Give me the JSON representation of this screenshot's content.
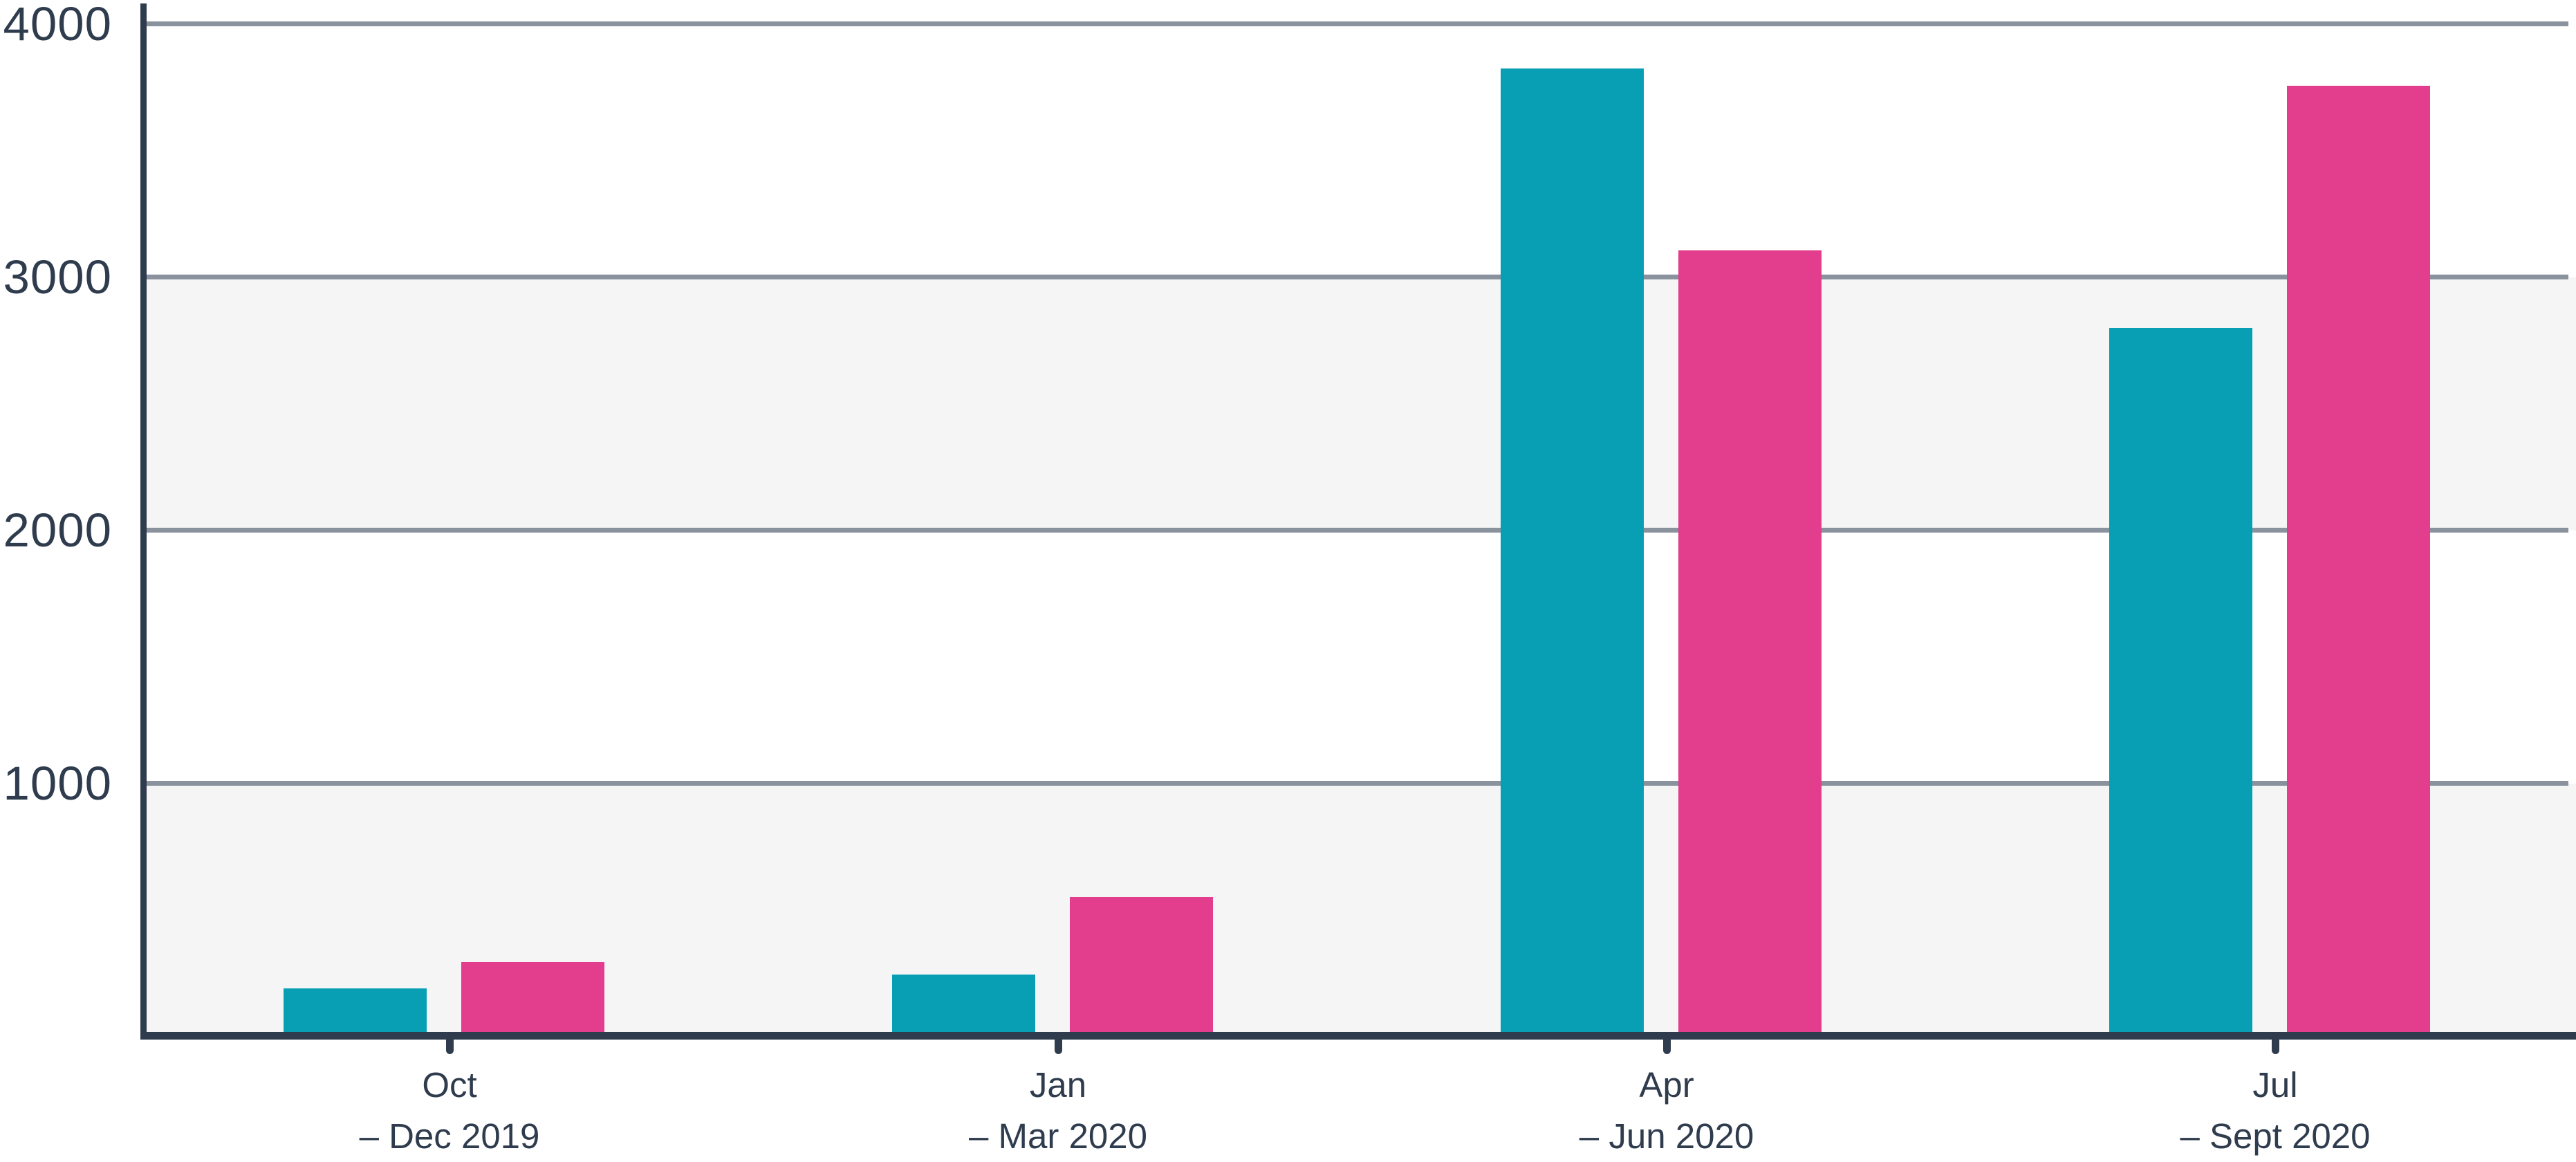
{
  "chart_data": {
    "type": "bar",
    "categories": [
      {
        "line1": "Oct",
        "line2": "– Dec 2019"
      },
      {
        "line1": "Jan",
        "line2": "– Mar 2020"
      },
      {
        "line1": "Apr",
        "line2": "– Jun 2020"
      },
      {
        "line1": "Jul",
        "line2": "– Sept 2020"
      }
    ],
    "series": [
      {
        "name": "teal",
        "color": "#089FB5",
        "values": [
          190,
          245,
          3825,
          2800
        ]
      },
      {
        "name": "pink",
        "color": "#E23E8D",
        "values": [
          295,
          550,
          3105,
          3755
        ]
      }
    ],
    "title": "",
    "xlabel": "",
    "ylabel": "",
    "ylim": [
      0,
      4000
    ],
    "yticks": [
      {
        "value": 1000,
        "label": "1000"
      },
      {
        "value": 2000,
        "label": "2000"
      },
      {
        "value": 3000,
        "label": "3000"
      },
      {
        "value": 4000,
        "label": "4000"
      }
    ],
    "grid": true,
    "legend": "none",
    "shaded_bands": [
      [
        0,
        1000
      ],
      [
        2000,
        3000
      ]
    ]
  },
  "style": {
    "axis_color": "#2F3C4E",
    "text_color": "#2F3C4E",
    "grid_color": "#8A929E",
    "band_color": "#F5F5F6",
    "background": "#FFFFFF"
  }
}
